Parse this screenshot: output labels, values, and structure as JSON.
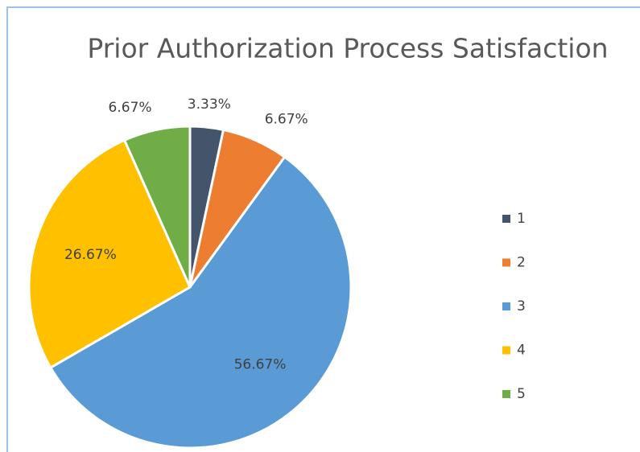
{
  "chart_data": {
    "type": "pie",
    "title": "Prior Authorization Process Satisfaction",
    "categories": [
      "1",
      "2",
      "3",
      "4",
      "5"
    ],
    "values": [
      3.33,
      6.67,
      56.67,
      26.67,
      6.67
    ],
    "value_labels": [
      "3.33%",
      "6.67%",
      "56.67%",
      "26.67%",
      "6.67%"
    ],
    "colors": [
      "#44546a",
      "#ed7d31",
      "#5b9bd5",
      "#ffc000",
      "#70ad47"
    ],
    "legend": "right"
  }
}
